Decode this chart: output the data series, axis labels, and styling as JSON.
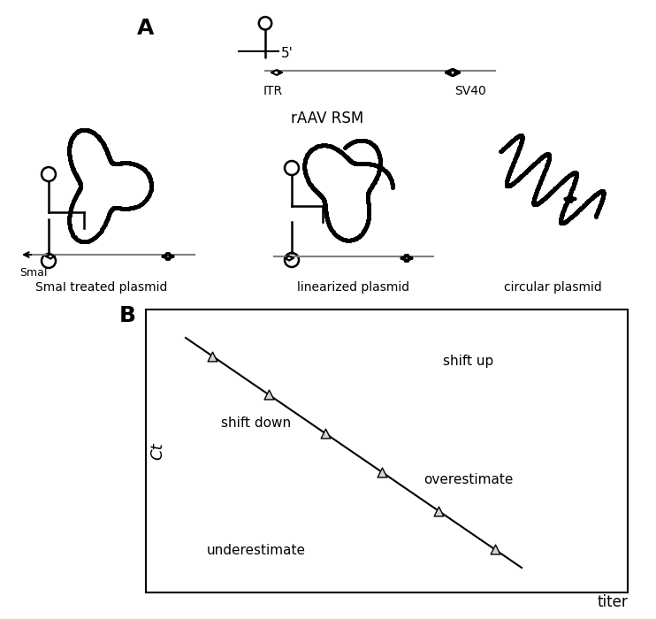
{
  "fig_width": 7.42,
  "fig_height": 7.0,
  "bg_color": "#ffffff",
  "label_A": "A",
  "label_B": "B",
  "rAAV_RSM_label": "rAAV RSM",
  "ITR_label": "ITR",
  "SV40_label": "SV40",
  "five_prime_label": "5'",
  "smal_treated_label": "SmaI treated plasmid",
  "smal_label": "SmaI",
  "linearized_label": "linearized plasmid",
  "circular_label": "circular plasmid",
  "ct_label": "Ct",
  "titer_label": "titer",
  "shift_up_label": "shift up",
  "shift_down_label": "shift down",
  "overestimate_label": "overestimate",
  "underestimate_label": "underestimate"
}
